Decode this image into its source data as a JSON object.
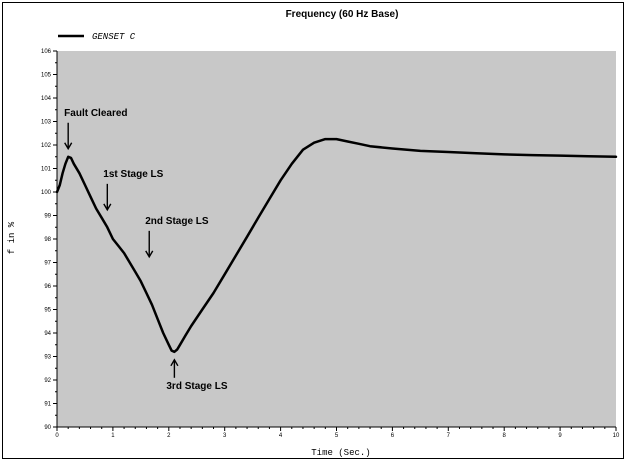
{
  "chart_data": {
    "type": "line",
    "title": "Frequency (60 Hz Base)",
    "xlabel": "Time (Sec.)",
    "ylabel": "f in %",
    "xlim": [
      0,
      10
    ],
    "ylim": [
      90,
      106
    ],
    "x_ticks": [
      "0",
      "1",
      "2",
      "3",
      "4",
      "5",
      "6",
      "7",
      "8",
      "9",
      "10"
    ],
    "y_ticks": [
      "90",
      "91",
      "92",
      "93",
      "94",
      "95",
      "96",
      "97",
      "98",
      "99",
      "100",
      "101",
      "102",
      "103",
      "104",
      "105",
      "106"
    ],
    "grid": false,
    "background": "#c8c8c8",
    "legend_position": "top-left",
    "series": [
      {
        "name": "GENSET C",
        "color": "#000000",
        "x": [
          0,
          0.05,
          0.1,
          0.15,
          0.2,
          0.25,
          0.3,
          0.4,
          0.5,
          0.6,
          0.7,
          0.8,
          0.9,
          1.0,
          1.1,
          1.2,
          1.3,
          1.4,
          1.5,
          1.6,
          1.7,
          1.8,
          1.9,
          2.0,
          2.05,
          2.1,
          2.15,
          2.2,
          2.3,
          2.4,
          2.6,
          2.8,
          3.0,
          3.2,
          3.4,
          3.6,
          3.8,
          4.0,
          4.2,
          4.4,
          4.6,
          4.8,
          5.0,
          5.2,
          5.4,
          5.6,
          6.0,
          6.5,
          7.0,
          7.5,
          8.0,
          8.5,
          9.0,
          9.5,
          10.0
        ],
        "y": [
          100,
          100.3,
          100.8,
          101.2,
          101.5,
          101.45,
          101.2,
          100.8,
          100.3,
          99.8,
          99.3,
          98.9,
          98.5,
          98.0,
          97.7,
          97.4,
          97.0,
          96.6,
          96.2,
          95.7,
          95.2,
          94.6,
          94.0,
          93.5,
          93.25,
          93.2,
          93.3,
          93.5,
          93.9,
          94.3,
          95.0,
          95.7,
          96.5,
          97.3,
          98.1,
          98.9,
          99.7,
          100.5,
          101.2,
          101.8,
          102.1,
          102.25,
          102.25,
          102.15,
          102.05,
          101.95,
          101.85,
          101.75,
          101.7,
          101.65,
          101.6,
          101.57,
          101.55,
          101.52,
          101.5
        ]
      }
    ],
    "annotations": [
      {
        "text": "Fault Cleared",
        "x": 0.2,
        "y": 101.5,
        "arrow": "down"
      },
      {
        "text": "1st Stage LS",
        "x": 0.9,
        "y": 98.9,
        "arrow": "down"
      },
      {
        "text": "2nd Stage LS",
        "x": 1.65,
        "y": 96.9,
        "arrow": "down"
      },
      {
        "text": "3rd Stage LS",
        "x": 2.1,
        "y": 93.2,
        "arrow": "up"
      }
    ]
  }
}
